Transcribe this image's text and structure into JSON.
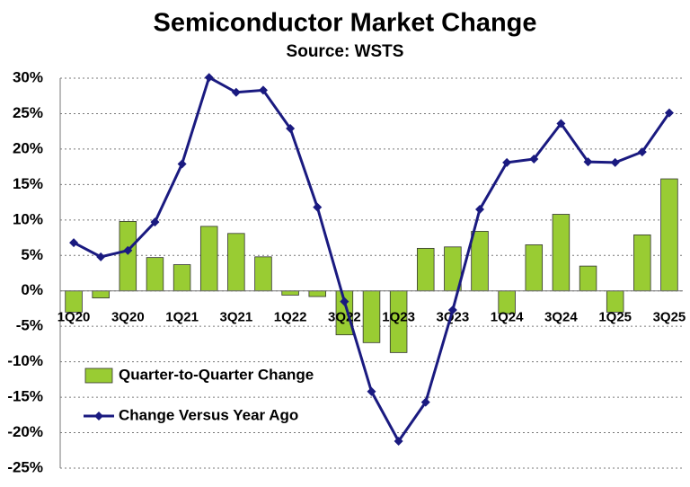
{
  "chart_data": {
    "type": "bar-line",
    "title": "Semiconductor Market Change",
    "subtitle": "Source: WSTS",
    "categories": [
      "1Q20",
      null,
      "3Q20",
      null,
      "1Q21",
      null,
      "3Q21",
      null,
      "1Q22",
      null,
      "3Q22",
      null,
      "1Q23",
      null,
      "3Q23",
      null,
      "1Q24",
      null,
      "3Q24",
      null,
      "1Q25",
      null,
      "3Q25"
    ],
    "series": [
      {
        "name": "Quarter-to-Quarter Change",
        "type": "bar",
        "color": "#99cc33",
        "values": [
          -3.0,
          -1.0,
          9.8,
          4.7,
          3.7,
          9.1,
          8.1,
          4.8,
          -0.6,
          -0.8,
          -6.2,
          -7.3,
          -8.7,
          6.0,
          6.2,
          8.4,
          -3.2,
          6.5,
          10.8,
          3.5,
          -3.0,
          7.9,
          15.8
        ]
      },
      {
        "name": "Change Versus Year Ago",
        "type": "line",
        "color": "#1a1a80",
        "values": [
          6.8,
          4.8,
          5.7,
          9.7,
          17.9,
          30.1,
          28.0,
          28.3,
          22.9,
          11.8,
          -1.5,
          -14.2,
          -21.2,
          -15.7,
          -2.7,
          11.5,
          18.1,
          18.6,
          23.6,
          18.2,
          18.1,
          19.6,
          25.1
        ]
      }
    ],
    "ylim": [
      -25,
      30
    ],
    "yticks": [
      {
        "value": -25,
        "label": "-25%"
      },
      {
        "value": -20,
        "label": "-20%"
      },
      {
        "value": -15,
        "label": "-15%"
      },
      {
        "value": -10,
        "label": "-10%"
      },
      {
        "value": -5,
        "label": "-5%"
      },
      {
        "value": 0,
        "label": "0%"
      },
      {
        "value": 5,
        "label": "5%"
      },
      {
        "value": 10,
        "label": "10%"
      },
      {
        "value": 15,
        "label": "15%"
      },
      {
        "value": 20,
        "label": "20%"
      },
      {
        "value": 25,
        "label": "25%"
      },
      {
        "value": 30,
        "label": "30%"
      }
    ],
    "grid": true
  }
}
